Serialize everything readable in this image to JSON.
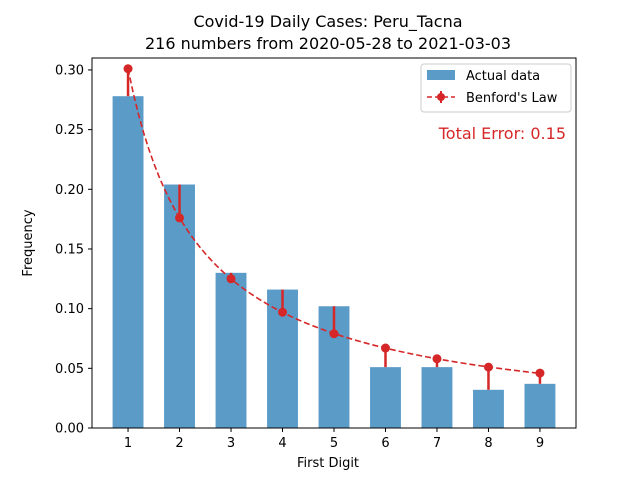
{
  "chart_data": {
    "type": "bar",
    "title": "Covid-19 Daily Cases: Peru_Tacna",
    "subtitle": "216 numbers from 2020-05-28 to 2021-03-03",
    "xlabel": "First Digit",
    "ylabel": "Frequency",
    "categories": [
      "1",
      "2",
      "3",
      "4",
      "5",
      "6",
      "7",
      "8",
      "9"
    ],
    "ylim": [
      0,
      0.3
    ],
    "yticks": [
      "0.00",
      "0.05",
      "0.10",
      "0.15",
      "0.20",
      "0.25",
      "0.30"
    ],
    "series": [
      {
        "name": "Actual data",
        "type": "bar",
        "color": "#5b9bc8",
        "values": [
          0.278,
          0.204,
          0.13,
          0.116,
          0.102,
          0.051,
          0.051,
          0.032,
          0.037
        ]
      },
      {
        "name": "Benford's Law",
        "type": "line",
        "style": "dashed",
        "color": "#d62728",
        "values": [
          0.301,
          0.176,
          0.125,
          0.097,
          0.079,
          0.067,
          0.058,
          0.051,
          0.046
        ]
      }
    ],
    "annotation": "Total Error: 0.15",
    "annotation_color": "#d62728",
    "legend_position": "top-right",
    "grid": false
  }
}
